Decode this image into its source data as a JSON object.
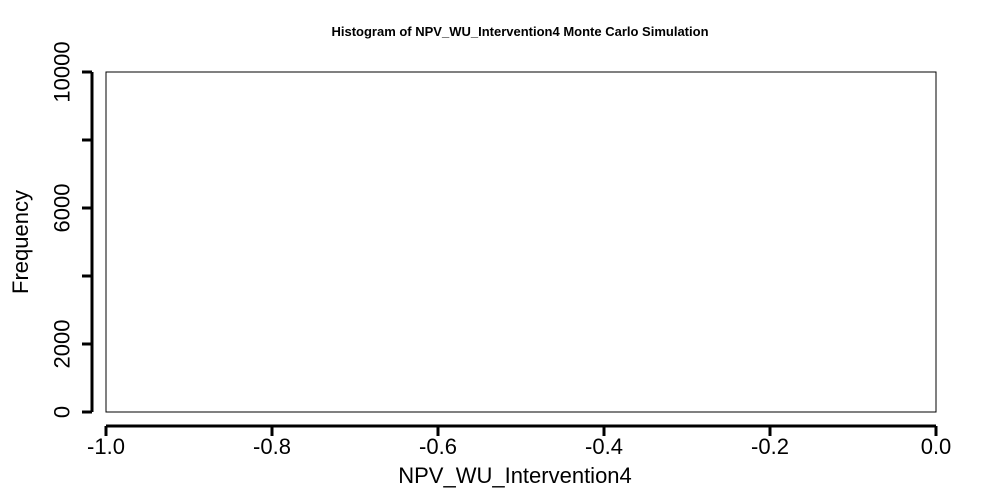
{
  "chart_data": {
    "type": "bar",
    "title": "Histogram of  NPV_WU_Intervention4  Monte Carlo Simulation",
    "xlabel": "NPV_WU_Intervention4",
    "ylabel": "Frequency",
    "xlim": [
      -1.0,
      0.0
    ],
    "ylim": [
      0,
      10000
    ],
    "x_ticks": [
      -1.0,
      -0.8,
      -0.6,
      -0.4,
      -0.2,
      0.0
    ],
    "x_tick_labels": [
      "-1.0",
      "-0.8",
      "-0.6",
      "-0.4",
      "-0.2",
      "0.0"
    ],
    "y_ticks": [
      0,
      2000,
      4000,
      6000,
      8000,
      10000
    ],
    "y_tick_labels": [
      "0",
      "2000",
      "",
      "6000",
      "",
      "10000"
    ],
    "bins": [],
    "values": [],
    "grid": false
  }
}
